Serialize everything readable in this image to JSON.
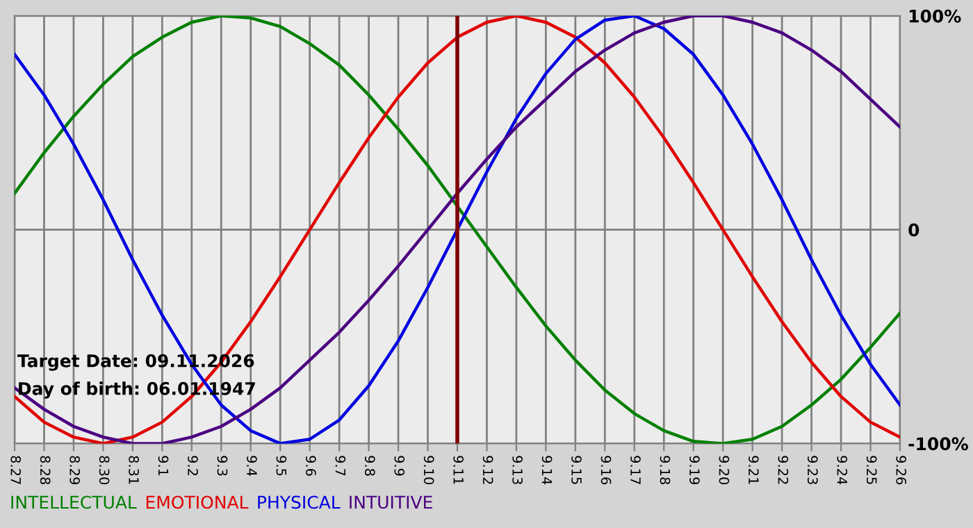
{
  "chart_data": {
    "type": "line",
    "categories": [
      "8.27",
      "8.28",
      "8.29",
      "8.30",
      "8.31",
      "9.1",
      "9.2",
      "9.3",
      "9.4",
      "9.5",
      "9.6",
      "9.7",
      "9.8",
      "9.9",
      "9.10",
      "9.11",
      "9.12",
      "9.13",
      "9.14",
      "9.15",
      "9.16",
      "9.17",
      "9.18",
      "9.19",
      "9.20",
      "9.21",
      "9.22",
      "9.23",
      "9.24",
      "9.25",
      "9.26"
    ],
    "series": [
      {
        "name": "INTELLECTUAL",
        "color": "#008000",
        "values": [
          17,
          36,
          53,
          68,
          81,
          90,
          97,
          100,
          99,
          95,
          87,
          77,
          63,
          47,
          30,
          11,
          -8,
          -27,
          -45,
          -61,
          -75,
          -86,
          -94,
          -99,
          -100,
          -98,
          -92,
          -82,
          -70,
          -55,
          -39
        ]
      },
      {
        "name": "EMOTIONAL",
        "color": "#e00000",
        "values": [
          -78,
          -90,
          -97,
          -100,
          -97,
          -90,
          -78,
          -62,
          -43,
          -22,
          0,
          22,
          43,
          62,
          78,
          90,
          97,
          100,
          97,
          90,
          78,
          62,
          43,
          22,
          0,
          -22,
          -43,
          -62,
          -78,
          -90,
          -97
        ]
      },
      {
        "name": "PHYSICAL",
        "color": "#0000e0",
        "values": [
          82,
          63,
          40,
          14,
          -14,
          -40,
          -63,
          -82,
          -94,
          -100,
          -98,
          -89,
          -73,
          -52,
          -27,
          0,
          27,
          52,
          73,
          89,
          98,
          100,
          94,
          82,
          63,
          40,
          14,
          -14,
          -40,
          -63,
          -82
        ]
      },
      {
        "name": "INTUITIVE",
        "color": "#4b0082",
        "values": [
          -74,
          -84,
          -92,
          -97,
          -100,
          -100,
          -97,
          -92,
          -84,
          -74,
          -61,
          -48,
          -33,
          -17,
          0,
          17,
          33,
          48,
          61,
          74,
          84,
          92,
          97,
          100,
          100,
          97,
          92,
          84,
          74,
          61,
          48
        ]
      }
    ],
    "ylim": [
      -100,
      100
    ],
    "yticks": [
      {
        "value": 100,
        "label": "100%"
      },
      0,
      {
        "value": -100,
        "label": "-100%"
      }
    ],
    "grid": true,
    "legend": "bottom",
    "ref_lines": [
      {
        "axis": "x",
        "value": "9.11",
        "color": "#800000"
      }
    ],
    "annotations": [
      "Target Date: 09.11.2026",
      "Day of birth: 06.01.1947"
    ]
  }
}
